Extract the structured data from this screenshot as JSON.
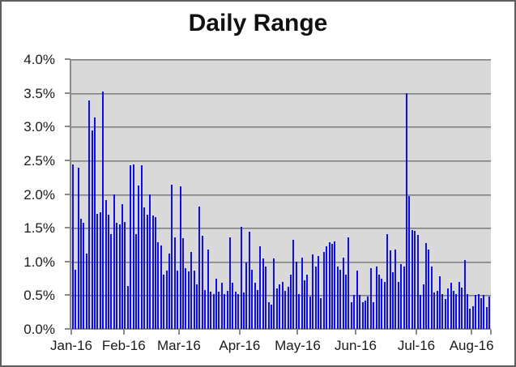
{
  "chart_data": {
    "type": "bar",
    "title": "Daily Range",
    "xlabel": "",
    "ylabel": "",
    "ylim_percent": [
      0.0,
      4.0
    ],
    "grid": true,
    "legend": false,
    "y_ticks": [
      {
        "label": "0.0%",
        "value": 0.0
      },
      {
        "label": "0.5%",
        "value": 0.5
      },
      {
        "label": "1.0%",
        "value": 1.0
      },
      {
        "label": "1.5%",
        "value": 1.5
      },
      {
        "label": "2.0%",
        "value": 2.0
      },
      {
        "label": "2.5%",
        "value": 2.5
      },
      {
        "label": "3.0%",
        "value": 3.0
      },
      {
        "label": "3.5%",
        "value": 3.5
      },
      {
        "label": "4.0%",
        "value": 4.0
      }
    ],
    "x_ticks": [
      {
        "label": "Jan-16",
        "index": 0
      },
      {
        "label": "Feb-16",
        "index": 19
      },
      {
        "label": "Mar-16",
        "index": 39
      },
      {
        "label": "Apr-16",
        "index": 61
      },
      {
        "label": "May-16",
        "index": 82
      },
      {
        "label": "Jun-16",
        "index": 103
      },
      {
        "label": "Jul-16",
        "index": 125
      },
      {
        "label": "Aug-16",
        "index": 145
      }
    ],
    "values_percent": [
      2.44,
      0.88,
      2.39,
      1.63,
      1.57,
      1.12,
      3.39,
      2.94,
      3.14,
      1.71,
      1.73,
      3.52,
      1.91,
      1.69,
      1.41,
      2.0,
      1.58,
      1.55,
      1.85,
      1.59,
      0.64,
      2.43,
      2.44,
      1.41,
      2.13,
      2.43,
      1.8,
      1.7,
      2.0,
      1.68,
      1.66,
      1.28,
      1.24,
      0.8,
      0.86,
      1.12,
      2.14,
      1.36,
      0.86,
      2.11,
      1.34,
      0.9,
      0.85,
      1.14,
      0.86,
      0.66,
      1.82,
      1.38,
      0.58,
      1.18,
      0.55,
      0.52,
      0.75,
      0.55,
      0.68,
      0.52,
      0.57,
      1.36,
      0.68,
      0.55,
      0.52,
      1.52,
      0.54,
      0.98,
      1.44,
      0.88,
      0.68,
      0.58,
      1.22,
      1.04,
      0.92,
      0.4,
      0.36,
      1.04,
      0.6,
      0.66,
      0.7,
      0.56,
      0.62,
      0.8,
      1.32,
      1.0,
      0.52,
      1.06,
      0.72,
      0.8,
      0.48,
      1.1,
      0.92,
      1.08,
      0.46,
      1.14,
      1.22,
      1.28,
      1.26,
      1.3,
      0.92,
      0.88,
      1.06,
      0.8,
      1.36,
      0.4,
      0.5,
      0.86,
      0.5,
      0.4,
      0.42,
      0.48,
      0.9,
      0.4,
      0.92,
      0.8,
      0.74,
      0.7,
      1.41,
      1.16,
      0.84,
      1.18,
      0.7,
      0.96,
      0.92,
      3.5,
      1.97,
      1.47,
      1.45,
      1.39,
      0.5,
      0.66,
      1.27,
      1.18,
      0.92,
      0.54,
      0.56,
      0.78,
      0.52,
      0.44,
      0.6,
      0.68,
      0.57,
      0.52,
      0.7,
      0.61,
      1.02,
      0.52,
      0.3,
      0.34,
      0.5,
      0.52,
      0.46,
      0.5,
      0.32,
      0.48
    ],
    "colors": {
      "bar": "#0d0df0",
      "plot_background": "#d9d9d9",
      "grid_line": "#7f7f7f",
      "axis_line": "#8a8a8a",
      "text": "#1a1a1a",
      "frame_border": "#5e5e5e",
      "chart_background": "#ffffff"
    }
  }
}
